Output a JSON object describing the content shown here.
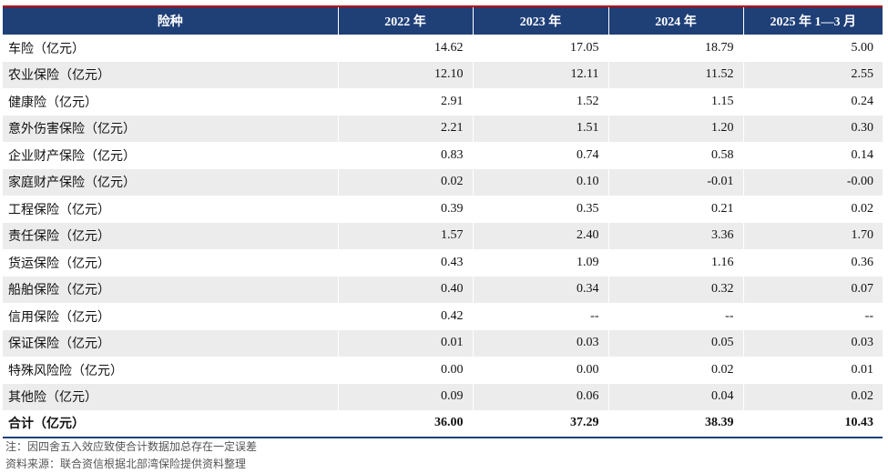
{
  "table": {
    "headers": [
      "险种",
      "2022 年",
      "2023 年",
      "2024 年",
      "2025 年 1—3 月"
    ],
    "rows": [
      [
        "车险（亿元）",
        "14.62",
        "17.05",
        "18.79",
        "5.00"
      ],
      [
        "农业保险（亿元）",
        "12.10",
        "12.11",
        "11.52",
        "2.55"
      ],
      [
        "健康险（亿元）",
        "2.91",
        "1.52",
        "1.15",
        "0.24"
      ],
      [
        "意外伤害保险（亿元）",
        "2.21",
        "1.51",
        "1.20",
        "0.30"
      ],
      [
        "企业财产保险（亿元）",
        "0.83",
        "0.74",
        "0.58",
        "0.14"
      ],
      [
        "家庭财产保险（亿元）",
        "0.02",
        "0.10",
        "-0.01",
        "-0.00"
      ],
      [
        "工程保险（亿元）",
        "0.39",
        "0.35",
        "0.21",
        "0.02"
      ],
      [
        "责任保险（亿元）",
        "1.57",
        "2.40",
        "3.36",
        "1.70"
      ],
      [
        "货运保险（亿元）",
        "0.43",
        "1.09",
        "1.16",
        "0.36"
      ],
      [
        "船舶保险（亿元）",
        "0.40",
        "0.34",
        "0.32",
        "0.07"
      ],
      [
        "信用保险（亿元）",
        "0.42",
        "--",
        "--",
        "--"
      ],
      [
        "保证保险（亿元）",
        "0.01",
        "0.03",
        "0.05",
        "0.03"
      ],
      [
        "特殊风险险（亿元）",
        "0.00",
        "0.00",
        "0.02",
        "0.01"
      ],
      [
        "其他险（亿元）",
        "0.09",
        "0.06",
        "0.04",
        "0.02"
      ]
    ],
    "total": [
      "合计（亿元）",
      "36.00",
      "37.29",
      "38.39",
      "10.43"
    ]
  },
  "notes": {
    "note": "注：因四舍五入效应致使合计数据加总存在一定误差",
    "source": "资料来源：联合资信根据北部湾保险提供资料整理"
  }
}
